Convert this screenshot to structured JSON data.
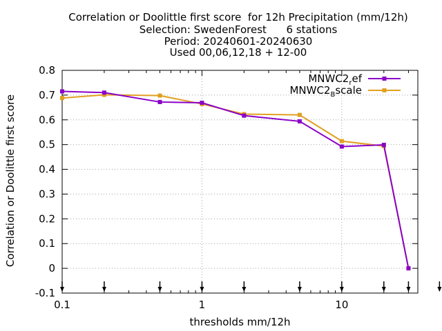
{
  "title_lines": [
    "Correlation or Doolittle first score  for 12h Precipitation (mm/12h)",
    "Selection: SwedenForest      6 stations",
    "Period: 20240601-20240630",
    "Used 00,06,12,18 + 12-00"
  ],
  "colors": {
    "series1": "#8b00c8",
    "series2": "#e0a020",
    "grid": "#a0a0a0",
    "axis": "#000000"
  },
  "chart_data": {
    "type": "line",
    "title": "Correlation or Doolittle first score  for 12h Precipitation (mm/12h)",
    "subtitle": [
      "Selection: SwedenForest      6 stations",
      "Period: 20240601-20240630",
      "Used 00,06,12,18 + 12-00"
    ],
    "xlabel": "thresholds mm/12h",
    "ylabel": "Correlation or Doolittle first score",
    "xscale": "log",
    "xlim": [
      0.1,
      35
    ],
    "ylim": [
      -0.1,
      0.8
    ],
    "yticks": [
      "-0.1",
      "0",
      "0.1",
      "0.2",
      "0.3",
      "0.4",
      "0.5",
      "0.6",
      "0.7",
      "0.8"
    ],
    "xticks": [
      "0.1",
      "1",
      "10"
    ],
    "grid": true,
    "legend_position": "top-right",
    "arrow_markers_x": [
      0.1,
      0.2,
      0.5,
      1,
      2,
      5,
      10,
      20,
      30,
      50
    ],
    "x": [
      0.1,
      0.2,
      0.5,
      1,
      2,
      5,
      10,
      20,
      30
    ],
    "series": [
      {
        "name_main": "MNWC2",
        "name_sub": "r",
        "name_tail": "ef",
        "values": [
          0.715,
          0.71,
          0.672,
          0.669,
          0.617,
          0.594,
          0.492,
          0.499,
          0.0
        ]
      },
      {
        "name_main": "MNWC2",
        "name_sub": "B",
        "name_tail": "scale",
        "values": [
          0.688,
          0.701,
          0.698,
          0.664,
          0.623,
          0.62,
          0.514,
          0.494,
          0.0
        ]
      }
    ]
  }
}
